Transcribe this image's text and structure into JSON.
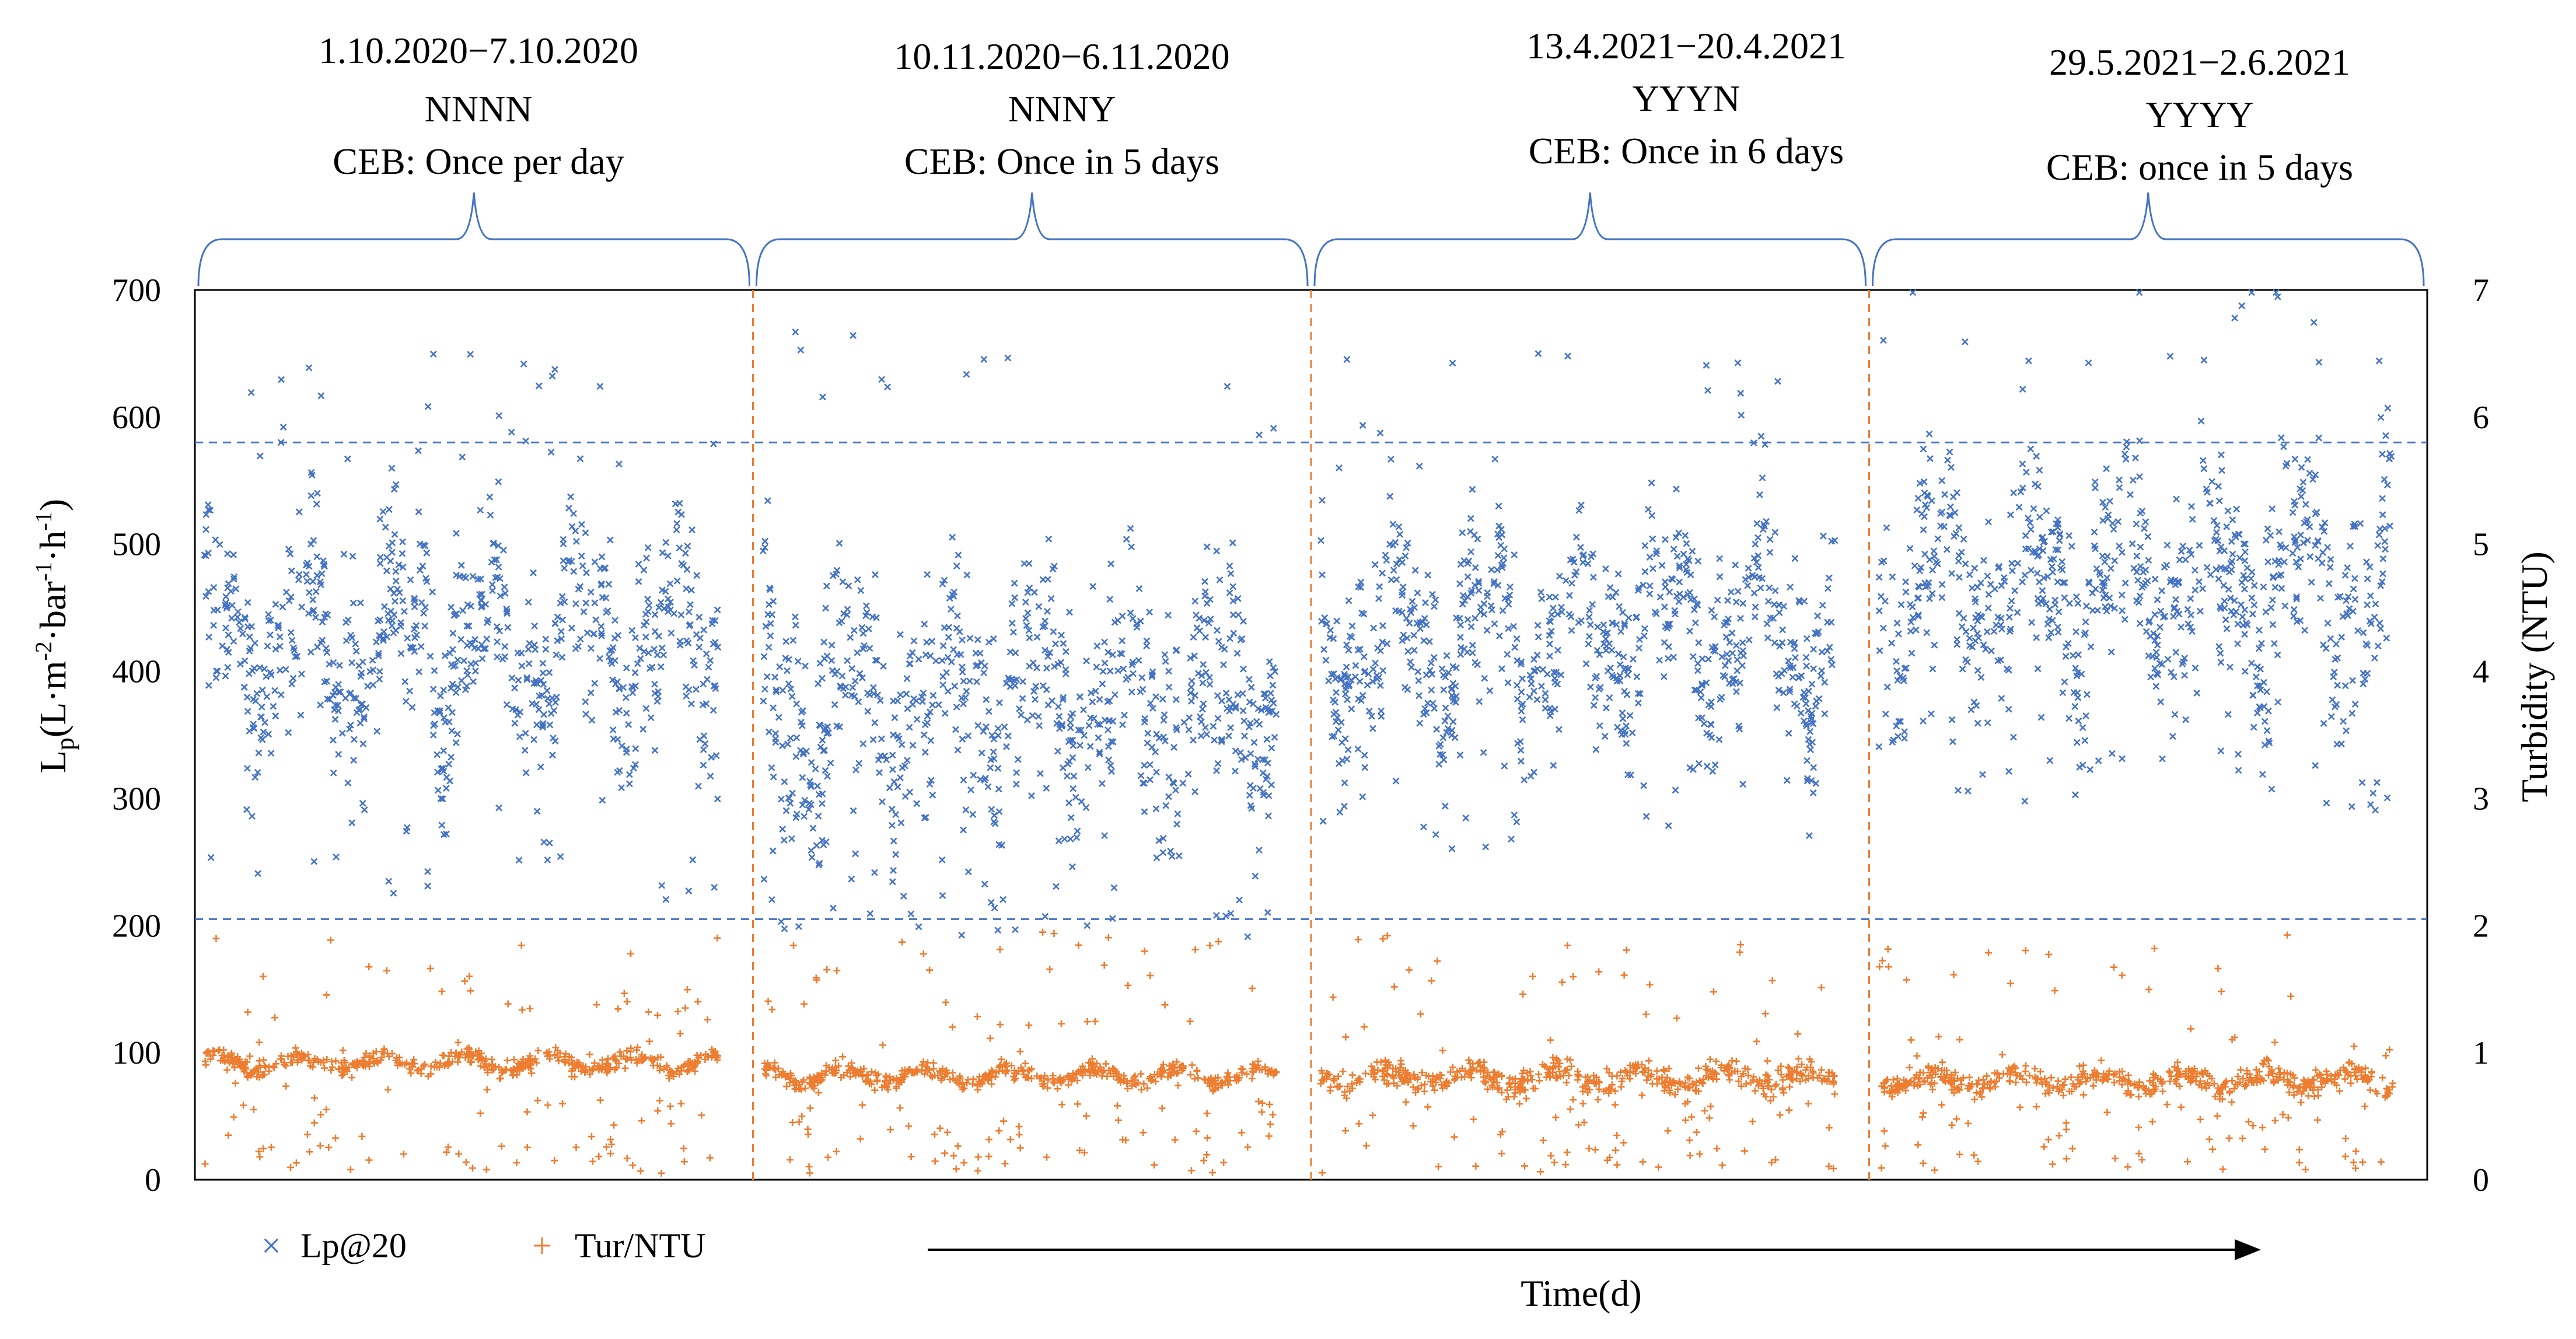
{
  "chart_data": {
    "type": "scatter",
    "x_axis_label": "Time(d)",
    "y_left": {
      "label_base": "L",
      "label_sub": "p",
      "label_units": "(L·m",
      "exp1": "-2",
      "mid1": "·bar",
      "exp2": "-1",
      "mid2": "·h",
      "exp3": "-1",
      "close": ")",
      "range": [
        0,
        700
      ],
      "ticks": [
        0,
        100,
        200,
        300,
        400,
        500,
        600,
        700
      ]
    },
    "y_right": {
      "label": "Turbidity (NTU)",
      "range": [
        0,
        7
      ],
      "ticks": [
        0,
        1,
        2,
        3,
        4,
        5,
        6,
        7
      ]
    },
    "x_domain": [
      0,
      28
    ],
    "reference_lines": [
      {
        "axis": "left",
        "value": 580
      },
      {
        "axis": "left",
        "value": 205
      }
    ],
    "period_dividers_days": [
      7,
      14,
      21
    ],
    "periods": [
      {
        "start_day": 0,
        "end_day": 7,
        "date_range": "1.10.2020−7.10.2020",
        "code": "NNNN",
        "ceb": "CEB: Once per day"
      },
      {
        "start_day": 7,
        "end_day": 14,
        "date_range": "10.11.2020−6.11.2020",
        "code": "NNNY",
        "ceb": "CEB: Once in 5 days"
      },
      {
        "start_day": 14,
        "end_day": 21,
        "date_range": "13.4.2021−20.4.2021",
        "code": "YYYN",
        "ceb": "CEB: Once in 6 days"
      },
      {
        "start_day": 21,
        "end_day": 28,
        "date_range": "29.5.2021−2.6.2021",
        "code": "YYYY",
        "ceb": "CEB: once in 5 days"
      }
    ],
    "series": [
      {
        "name": "Lp@20",
        "axis": "left",
        "marker": "x",
        "color": "#4472C4",
        "points_per_period": 800,
        "typical_ranges": [
          [
            260,
            560
          ],
          [
            230,
            580
          ],
          [
            300,
            560
          ],
          [
            330,
            640
          ]
        ],
        "period_means": [
          420,
          375,
          430,
          470
        ]
      },
      {
        "name": "Tur/NTU",
        "axis": "right",
        "marker": "+",
        "color": "#ED7D31",
        "points_per_period": 600,
        "typical_ranges": [
          [
            0.75,
            1.1
          ],
          [
            0.7,
            1.0
          ],
          [
            0.5,
            1.0
          ],
          [
            0.5,
            0.95
          ]
        ],
        "period_means": [
          0.92,
          0.82,
          0.8,
          0.78
        ]
      }
    ],
    "legend": [
      "Lp@20",
      "Tur/NTU"
    ],
    "legend_position": "bottom-left"
  },
  "colors": {
    "lp": "#4472C4",
    "tur": "#ED7D31",
    "brace": "#4472C4",
    "axis": "#000000"
  }
}
